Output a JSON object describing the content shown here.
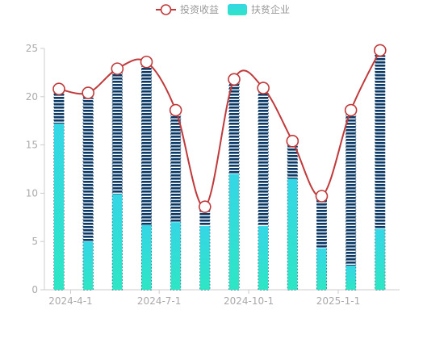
{
  "chart_data": {
    "type": "bar",
    "legend": {
      "position": "top-center",
      "items": [
        {
          "name": "投资收益",
          "type": "line",
          "color": "#c0393b"
        },
        {
          "name": "扶贫企业",
          "type": "bar",
          "color": "#2ee6cf"
        }
      ]
    },
    "x_axis": {
      "tick_labels": [
        "2024-4-1",
        "2024-7-1",
        "2024-10-1",
        "2025-1-1"
      ],
      "start_date": "2024-03-20",
      "tick_dates": [
        "2024-04-01",
        "2024-07-01",
        "2024-10-01",
        "2025-01-01"
      ]
    },
    "y_axis": {
      "min": 0,
      "max": 25,
      "ticks": [
        0,
        5,
        10,
        15,
        20,
        25
      ]
    },
    "grid": false,
    "dates": [
      "2024-03-20",
      "2024-04-19",
      "2024-05-19",
      "2024-06-18",
      "2024-07-18",
      "2024-08-17",
      "2024-09-16",
      "2024-10-16",
      "2024-11-15",
      "2024-12-15",
      "2025-01-14",
      "2025-02-13"
    ],
    "series": [
      {
        "name": "扶贫企业",
        "type": "bar",
        "color": "#2ee6cf",
        "values": [
          17.2,
          5.0,
          9.9,
          6.7,
          7.0,
          6.6,
          12.0,
          6.6,
          11.5,
          4.3,
          2.5,
          6.3
        ]
      },
      {
        "type": "bar-stack-background",
        "color": "#0c3a66",
        "values": [
          20.3,
          19.9,
          22.5,
          23.1,
          18.1,
          8.3,
          21.4,
          20.4,
          14.9,
          9.3,
          18.1,
          24.3
        ]
      },
      {
        "name": "投资收益",
        "type": "line",
        "color": "#c0393b",
        "values": [
          20.8,
          20.4,
          22.9,
          23.6,
          18.6,
          8.6,
          21.8,
          20.9,
          15.4,
          9.7,
          18.6,
          24.8
        ]
      }
    ]
  }
}
